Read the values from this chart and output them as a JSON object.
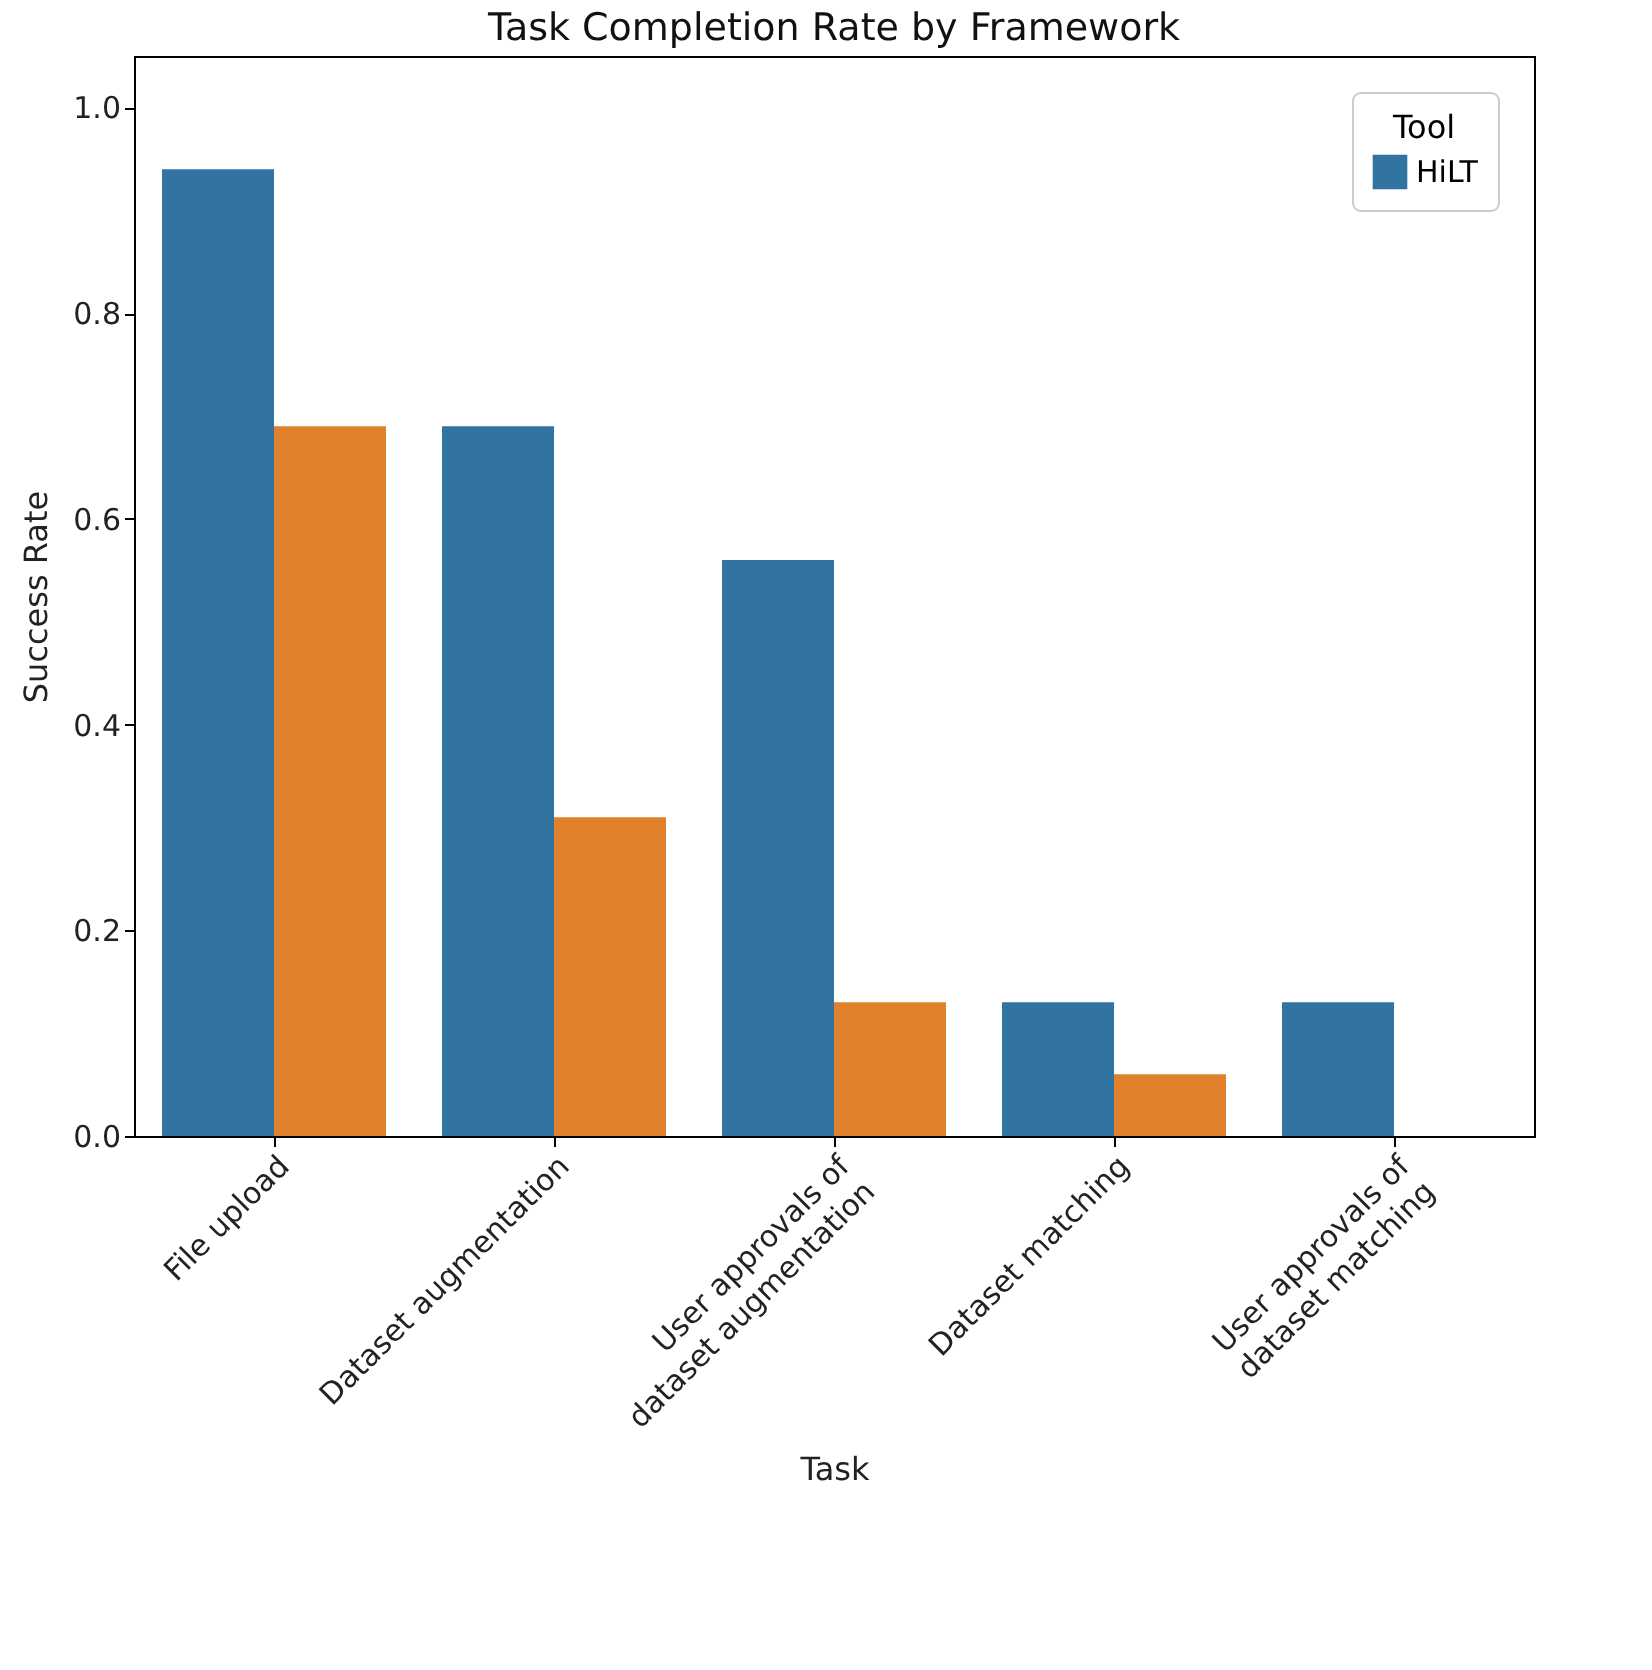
{
  "chart_data": {
    "type": "bar",
    "title": "Task Completion Rate by Framework",
    "xlabel": "Task",
    "ylabel": "Success Rate",
    "legend_title": "Tool",
    "legend": "top right",
    "categories": [
      "File upload",
      "Dataset augmentation",
      "User approvals of\ndataset augmentation",
      "Dataset matching",
      "User approvals of\ndataset matching"
    ],
    "series": [
      {
        "name": "HiLT",
        "color": "#3274a1",
        "values": [
          0.94,
          0.69,
          0.56,
          0.13,
          0.13
        ]
      },
      {
        "color": "#e1812c",
        "values": [
          0.69,
          0.31,
          0.13,
          0.06,
          0
        ]
      }
    ],
    "ylim": [
      0,
      1.05
    ],
    "yticks": [
      {
        "value": 0,
        "label": "0.0"
      },
      0.2,
      0.4,
      0.6,
      0.8,
      {
        "value": 1,
        "label": "1.0"
      }
    ]
  }
}
